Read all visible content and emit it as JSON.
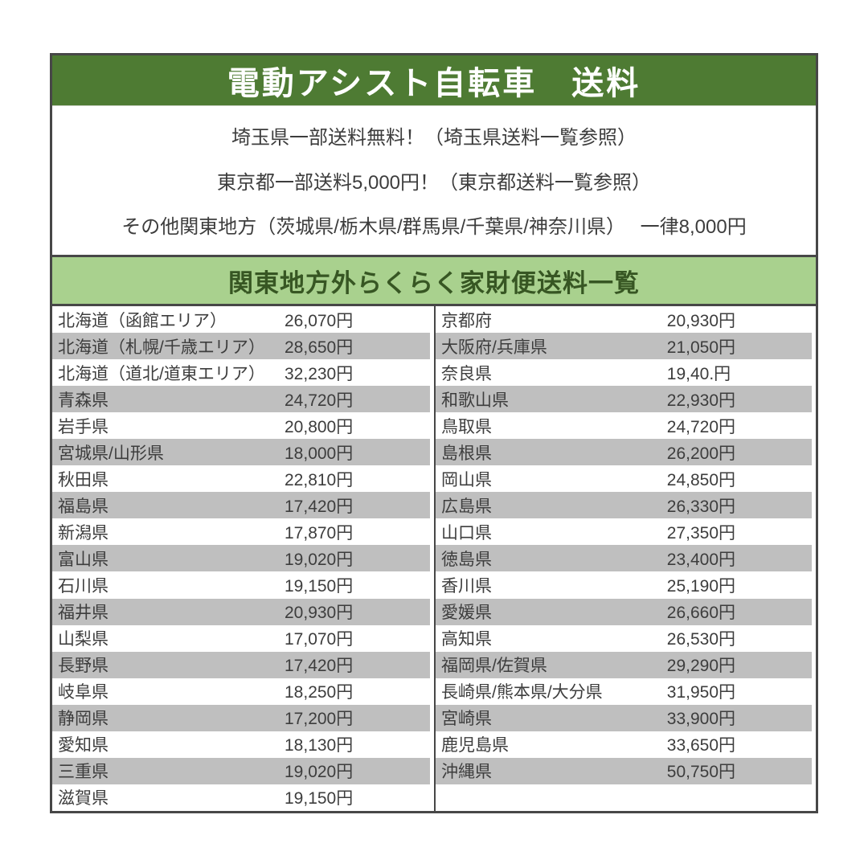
{
  "header": {
    "title": "電動アシスト自転車　送料"
  },
  "notices": [
    "埼玉県一部送料無料！（埼玉県送料一覧参照）",
    "東京都一部送料5,000円！（東京都送料一覧参照）",
    "その他関東地方（茨城県/栃木県/群馬県/千葉県/神奈川県）　 一律8,000円"
  ],
  "subheader": {
    "title": "関東地方外らくらく家財便送料一覧"
  },
  "shipping_table": {
    "rows_per_column": 19,
    "left_rows": [
      {
        "region": "北海道（函館エリア）",
        "price": "26,070円"
      },
      {
        "region": "北海道（札幌/千歳エリア）",
        "price": "28,650円"
      },
      {
        "region": "北海道（道北/道東エリア）",
        "price": "32,230円"
      },
      {
        "region": "青森県",
        "price": "24,720円"
      },
      {
        "region": "岩手県",
        "price": "20,800円"
      },
      {
        "region": "宮城県/山形県",
        "price": "18,000円"
      },
      {
        "region": "秋田県",
        "price": "22,810円"
      },
      {
        "region": "福島県",
        "price": "17,420円"
      },
      {
        "region": "新潟県",
        "price": "17,870円"
      },
      {
        "region": "富山県",
        "price": "19,020円"
      },
      {
        "region": "石川県",
        "price": "19,150円"
      },
      {
        "region": "福井県",
        "price": "20,930円"
      },
      {
        "region": "山梨県",
        "price": "17,070円"
      },
      {
        "region": "長野県",
        "price": "17,420円"
      },
      {
        "region": "岐阜県",
        "price": "18,250円"
      },
      {
        "region": "静岡県",
        "price": "17,200円"
      },
      {
        "region": "愛知県",
        "price": "18,130円"
      },
      {
        "region": "三重県",
        "price": "19,020円"
      },
      {
        "region": "滋賀県",
        "price": "19,150円"
      }
    ],
    "right_rows": [
      {
        "region": "京都府",
        "price": "20,930円"
      },
      {
        "region": "大阪府/兵庫県",
        "price": "21,050円"
      },
      {
        "region": "奈良県",
        "price": "19,40.円"
      },
      {
        "region": "和歌山県",
        "price": "22,930円"
      },
      {
        "region": "鳥取県",
        "price": "24,720円"
      },
      {
        "region": "島根県",
        "price": "26,200円"
      },
      {
        "region": "岡山県",
        "price": "24,850円"
      },
      {
        "region": "広島県",
        "price": "26,330円"
      },
      {
        "region": "山口県",
        "price": "27,350円"
      },
      {
        "region": "徳島県",
        "price": "23,400円"
      },
      {
        "region": "香川県",
        "price": "25,190円"
      },
      {
        "region": "愛媛県",
        "price": "26,660円"
      },
      {
        "region": "高知県",
        "price": "26,530円"
      },
      {
        "region": "福岡県/佐賀県",
        "price": "29,290円"
      },
      {
        "region": "長崎県/熊本県/大分県",
        "price": "31,950円"
      },
      {
        "region": "宮崎県",
        "price": "33,900円"
      },
      {
        "region": "鹿児島県",
        "price": "33,650円"
      },
      {
        "region": "沖縄県",
        "price": "50,750円"
      }
    ]
  },
  "colors": {
    "header_green": "#4e7b33",
    "subheader_light_green": "#a9d18e",
    "subheader_text_green": "#375623",
    "stripe_gray": "#bfbfbf",
    "border_dark": "#474747",
    "text_dark": "#3d3d3d"
  }
}
